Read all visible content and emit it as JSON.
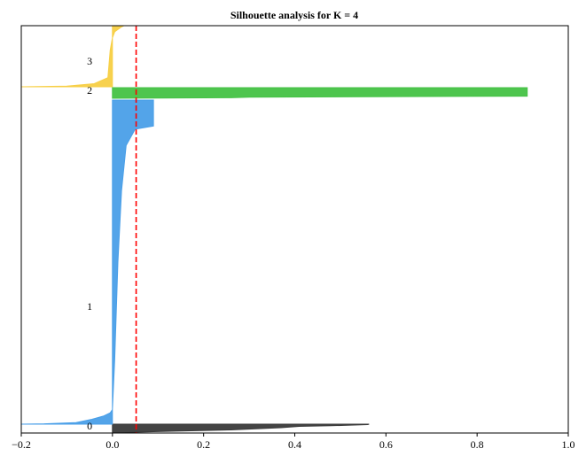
{
  "chart_data": {
    "type": "area",
    "title": "Silhouette analysis for K = 4",
    "xlabel": "",
    "ylabel": "",
    "xlim": [
      -0.2,
      1.0
    ],
    "x_ticks": [
      -0.2,
      0.0,
      0.2,
      0.4,
      0.6,
      0.8,
      1.0
    ],
    "x_tick_labels": [
      "−0.2",
      "0.0",
      "0.2",
      "0.4",
      "0.6",
      "0.8",
      "1.0"
    ],
    "grid": false,
    "average_silhouette": 0.052,
    "clusters": [
      {
        "label": "0",
        "color": "#3a3a3a",
        "silhouette_profile": [
          [
            0.0,
            0.0
          ],
          [
            0.02,
            0.0
          ],
          [
            0.05,
            0.1
          ],
          [
            0.13,
            0.2
          ],
          [
            0.26,
            0.35
          ],
          [
            0.37,
            0.6
          ],
          [
            0.41,
            0.75
          ],
          [
            0.48,
            0.82
          ],
          [
            0.56,
            0.95
          ],
          [
            0.563,
            1.0
          ]
        ]
      },
      {
        "label": "1",
        "color": "#4a9fe8",
        "silhouette_profile": [
          [
            -0.2,
            0.0
          ],
          [
            -0.15,
            0.001
          ],
          [
            -0.08,
            0.005
          ],
          [
            -0.045,
            0.015
          ],
          [
            -0.02,
            0.025
          ],
          [
            -0.005,
            0.035
          ],
          [
            0.0,
            0.045
          ],
          [
            0.005,
            0.2
          ],
          [
            0.012,
            0.5
          ],
          [
            0.02,
            0.72
          ],
          [
            0.03,
            0.86
          ],
          [
            0.05,
            0.91
          ],
          [
            0.09,
            0.92
          ],
          [
            0.09,
            1.0
          ]
        ]
      },
      {
        "label": "2",
        "color": "#44c244",
        "silhouette_profile": [
          [
            0.0,
            0.0
          ],
          [
            0.26,
            0.05
          ],
          [
            0.3,
            0.1
          ],
          [
            0.91,
            0.2
          ],
          [
            0.91,
            1.0
          ]
        ]
      },
      {
        "label": "3",
        "color": "#f7cf45",
        "silhouette_profile": [
          [
            -0.2,
            0.0
          ],
          [
            -0.1,
            0.01
          ],
          [
            -0.04,
            0.05
          ],
          [
            -0.01,
            0.15
          ],
          [
            -0.005,
            0.6
          ],
          [
            0.0,
            0.8
          ],
          [
            0.005,
            0.9
          ],
          [
            0.02,
            0.98
          ],
          [
            0.025,
            1.0
          ]
        ]
      }
    ]
  },
  "colors": {
    "average_line": "#ff0000",
    "axes": "#000000"
  }
}
